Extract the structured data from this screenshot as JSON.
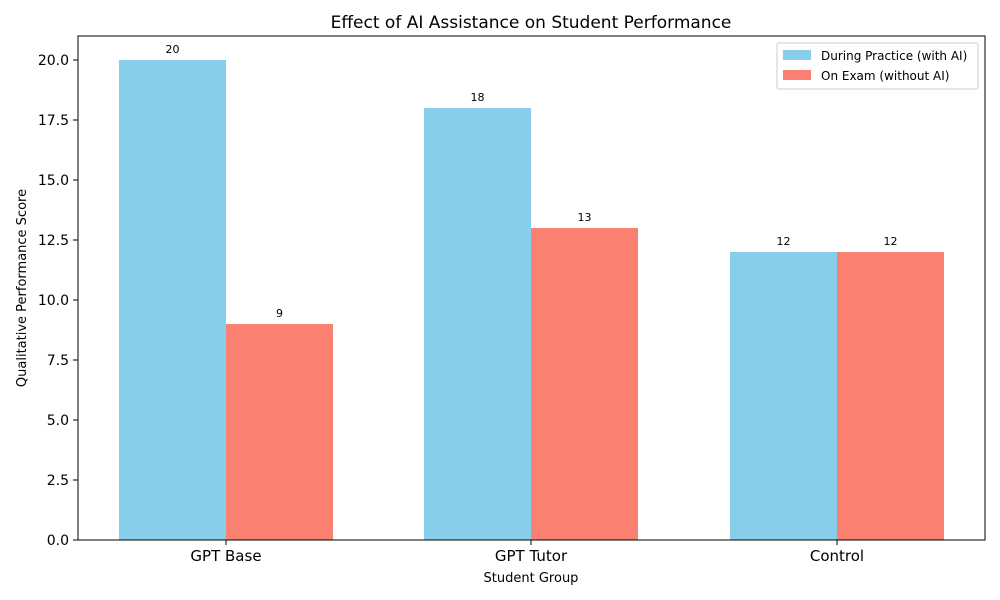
{
  "chart_data": {
    "type": "bar",
    "title": "Effect of AI Assistance on Student Performance",
    "xlabel": "Student Group",
    "ylabel": "Qualitative Performance Score",
    "categories": [
      "GPT Base",
      "GPT Tutor",
      "Control"
    ],
    "series": [
      {
        "name": "During Practice (with AI)",
        "values": [
          20,
          18,
          12
        ],
        "color": "#87ceeb"
      },
      {
        "name": "On Exam (without AI)",
        "values": [
          9,
          13,
          12
        ],
        "color": "#fa8072"
      }
    ],
    "ylim": [
      0,
      21
    ],
    "yticks": [
      "0.0",
      "2.5",
      "5.0",
      "7.5",
      "10.0",
      "12.5",
      "15.0",
      "17.5",
      "20.0"
    ],
    "ytick_values": [
      0,
      2.5,
      5,
      7.5,
      10,
      12.5,
      15,
      17.5,
      20
    ],
    "legend_position": "top-right",
    "grid": false
  }
}
